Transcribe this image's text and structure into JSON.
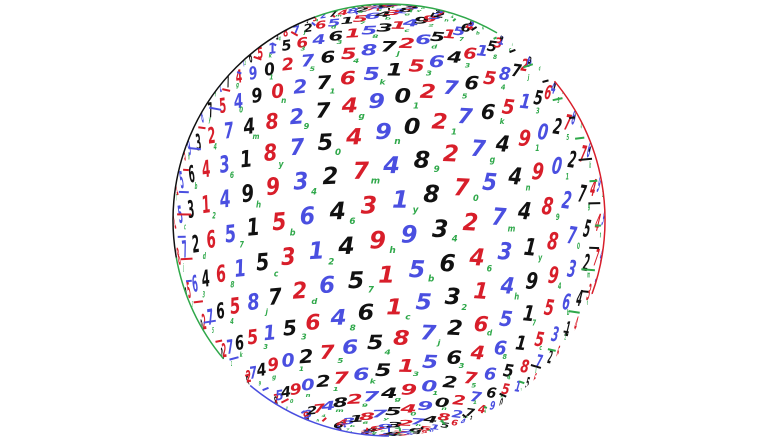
{
  "image": {
    "subject": "number-sphere",
    "background_color": "#ffffff",
    "palette": {
      "black": "#111111",
      "blue": "#4a4fe0",
      "red": "#d81e2a",
      "green": "#2fa84a"
    },
    "digit_sequence": [
      "6",
      "1",
      "5",
      "3",
      "1",
      "4",
      "9",
      "9",
      "3",
      "2",
      "7",
      "4",
      "8",
      "2",
      "7",
      "4",
      "9",
      "0",
      "2",
      "7",
      "6",
      "5",
      "8",
      "7",
      "2",
      "6",
      "5",
      "1",
      "5",
      "6",
      "4",
      "3",
      "1",
      "8",
      "7",
      "5",
      "4",
      "9",
      "0",
      "2",
      "7",
      "6",
      "5",
      "1",
      "5",
      "6",
      "4"
    ],
    "small_glyph_sequence": [
      "3",
      "8",
      "c",
      "2",
      "h",
      "4",
      "m",
      "9",
      "g",
      "1",
      "5",
      "4",
      "j",
      "d",
      "7",
      "b",
      "6",
      "y",
      "0",
      "n",
      "1",
      "k",
      "3"
    ]
  }
}
